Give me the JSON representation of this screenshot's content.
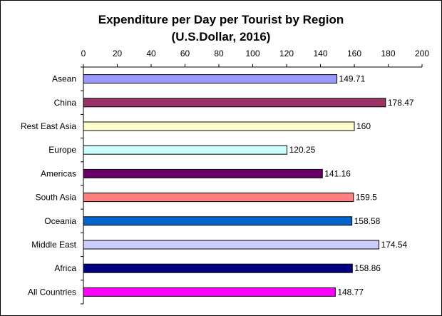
{
  "chart_data": {
    "type": "bar",
    "orientation": "horizontal",
    "title": "Expenditure per Day per Tourist by Region",
    "subtitle": "(U.S.Dollar, 2016)",
    "xlim": [
      0,
      200
    ],
    "x_ticks": [
      "0",
      "20",
      "40",
      "60",
      "80",
      "100",
      "120",
      "140",
      "160",
      "180",
      "200"
    ],
    "x_axis_position": "top",
    "grid": false,
    "categories": [
      "Asean",
      "China",
      "Rest East Asia",
      "Europe",
      "Americas",
      "South Asia",
      "Oceania",
      "Middle East",
      "Africa",
      "All Countries"
    ],
    "values": [
      149.71,
      178.47,
      160,
      120.25,
      141.16,
      159.5,
      158.58,
      174.54,
      158.86,
      148.77
    ],
    "value_labels": [
      "149.71",
      "178.47",
      "160",
      "120.25",
      "141.16",
      "159.5",
      "158.58",
      "174.54",
      "158.86",
      "148.77"
    ],
    "colors": [
      "#9999ff",
      "#993366",
      "#ffffcc",
      "#ccffff",
      "#660066",
      "#ff8080",
      "#0066cc",
      "#ccccff",
      "#000080",
      "#ff00ff"
    ]
  }
}
